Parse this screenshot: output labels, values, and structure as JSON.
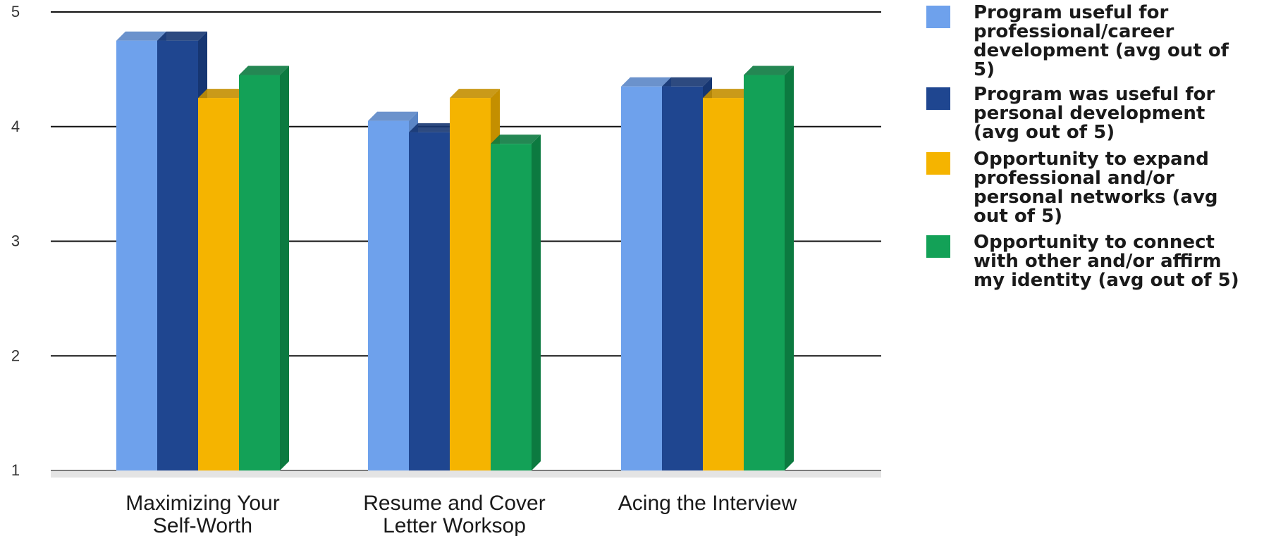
{
  "chart_data": {
    "type": "bar",
    "categories": [
      [
        "Maximizing Your",
        "Self-Worth"
      ],
      [
        "Resume and Cover",
        "Letter Worksop"
      ],
      [
        "Acing the Interview"
      ]
    ],
    "series": [
      {
        "name": "Program useful for professional/career development (avg out of 5)",
        "values": [
          4.75,
          4.05,
          4.35
        ],
        "color": "#6ea1ec",
        "side": "#5b86c6"
      },
      {
        "name": "Program was useful for personal development (avg out of 5)",
        "values": [
          4.75,
          3.95,
          4.35
        ],
        "color": "#1f4690",
        "side": "#163672"
      },
      {
        "name": "Opportunity to expand professional and/or personal networks (avg out of 5)",
        "values": [
          4.25,
          4.25,
          4.25
        ],
        "color": "#f5b400",
        "side": "#c48f00"
      },
      {
        "name": "Opportunity to connect with other and/or affirm my identity (avg out of 5)",
        "values": [
          4.45,
          3.85,
          4.45
        ],
        "color": "#13a157",
        "side": "#0c7a40"
      }
    ],
    "yticks": [
      "1",
      "2",
      "3",
      "4",
      "5"
    ],
    "ylim": [
      1,
      5
    ],
    "grid": true,
    "legend_position": "right",
    "title": "",
    "xlabel": "",
    "ylabel": ""
  },
  "legend_lines": [
    [
      "Program useful for",
      "professional/career",
      "development (avg out of",
      "5)"
    ],
    [
      "Program was useful for",
      "personal development",
      "(avg out of 5)"
    ],
    [
      "Opportunity to expand",
      "professional and/or",
      "personal networks (avg",
      "out of 5)"
    ],
    [
      "Opportunity to connect",
      "with other and/or affirm",
      "my identity (avg out of 5)"
    ]
  ]
}
